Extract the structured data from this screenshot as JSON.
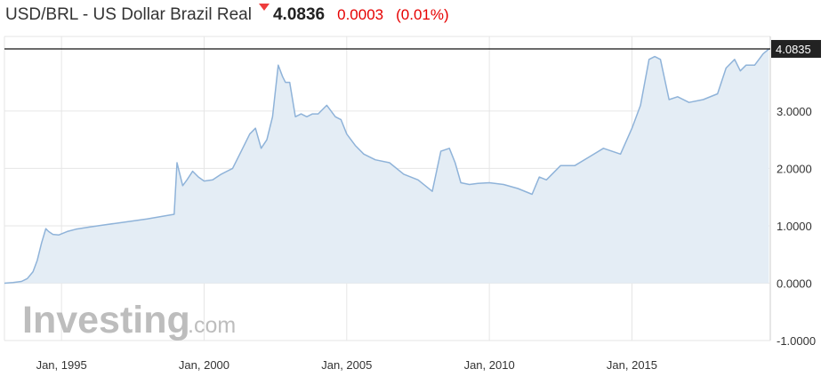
{
  "header": {
    "title": "USD/BRL - US Dollar Brazil Real",
    "direction_icon": "down-triangle-icon",
    "price": "4.0836",
    "change": "0.0003",
    "change_pct": "(0.01%)"
  },
  "watermark": {
    "brand": "Investing",
    "suffix": ".com"
  },
  "colors": {
    "line": "#8fb3d9",
    "area": "#e4edf5",
    "grid": "#e6e6e6",
    "current_line": "#111111",
    "label_bg": "#222222",
    "down": "#ee3d3d"
  },
  "chart_data": {
    "type": "area",
    "title": "USD/BRL - US Dollar Brazil Real",
    "xlabel": "",
    "ylabel": "",
    "xlim": [
      1993.0,
      2019.85
    ],
    "ylim": [
      -1.0,
      4.3
    ],
    "y_ticks": [
      4.0835,
      3.0,
      2.0,
      1.0,
      0.0,
      -1.0
    ],
    "y_tick_labels": [
      "4.0835",
      "3.0000",
      "2.0000",
      "1.0000",
      "0.0000",
      "-1.0000"
    ],
    "x_ticks": [
      1995.0,
      2000.0,
      2005.0,
      2010.0,
      2015.0
    ],
    "x_tick_labels": [
      "Jan, 1995",
      "Jan, 2000",
      "Jan, 2005",
      "Jan, 2010",
      "Jan, 2015"
    ],
    "current_value_label": "4.0835",
    "grid": true,
    "series": [
      {
        "x": [
          1993.0,
          1993.3,
          1993.6,
          1993.8,
          1994.0,
          1994.15,
          1994.3,
          1994.45,
          1994.55,
          1994.7,
          1994.9,
          1995.2,
          1995.5,
          1996.0,
          1997.0,
          1998.0,
          1998.95,
          1999.05,
          1999.15,
          1999.25,
          1999.4,
          1999.6,
          1999.8,
          2000.0,
          2000.3,
          2000.6,
          2001.0,
          2001.3,
          2001.6,
          2001.8,
          2002.0,
          2002.2,
          2002.4,
          2002.6,
          2002.75,
          2002.85,
          2003.0,
          2003.2,
          2003.4,
          2003.6,
          2003.8,
          2004.0,
          2004.3,
          2004.6,
          2004.8,
          2005.0,
          2005.3,
          2005.6,
          2006.0,
          2006.5,
          2007.0,
          2007.5,
          2008.0,
          2008.3,
          2008.6,
          2008.8,
          2009.0,
          2009.3,
          2009.6,
          2010.0,
          2010.5,
          2011.0,
          2011.5,
          2011.75,
          2012.0,
          2012.5,
          2013.0,
          2013.5,
          2014.0,
          2014.3,
          2014.6,
          2015.0,
          2015.3,
          2015.6,
          2015.8,
          2016.0,
          2016.3,
          2016.6,
          2017.0,
          2017.5,
          2018.0,
          2018.3,
          2018.6,
          2018.8,
          2019.0,
          2019.3,
          2019.6,
          2019.8
        ],
        "y": [
          0.0,
          0.01,
          0.03,
          0.08,
          0.2,
          0.4,
          0.7,
          0.95,
          0.9,
          0.85,
          0.84,
          0.9,
          0.94,
          0.98,
          1.05,
          1.12,
          1.2,
          2.1,
          1.9,
          1.7,
          1.8,
          1.95,
          1.85,
          1.78,
          1.8,
          1.9,
          2.0,
          2.3,
          2.6,
          2.7,
          2.35,
          2.5,
          2.9,
          3.8,
          3.6,
          3.5,
          3.5,
          2.9,
          2.95,
          2.9,
          2.95,
          2.95,
          3.1,
          2.9,
          2.85,
          2.6,
          2.4,
          2.25,
          2.15,
          2.1,
          1.9,
          1.8,
          1.6,
          2.3,
          2.35,
          2.1,
          1.75,
          1.72,
          1.74,
          1.75,
          1.72,
          1.65,
          1.55,
          1.85,
          1.8,
          2.05,
          2.05,
          2.2,
          2.35,
          2.3,
          2.25,
          2.7,
          3.1,
          3.9,
          3.95,
          3.9,
          3.2,
          3.25,
          3.15,
          3.2,
          3.3,
          3.75,
          3.9,
          3.7,
          3.8,
          3.8,
          4.0,
          4.08
        ]
      }
    ]
  }
}
